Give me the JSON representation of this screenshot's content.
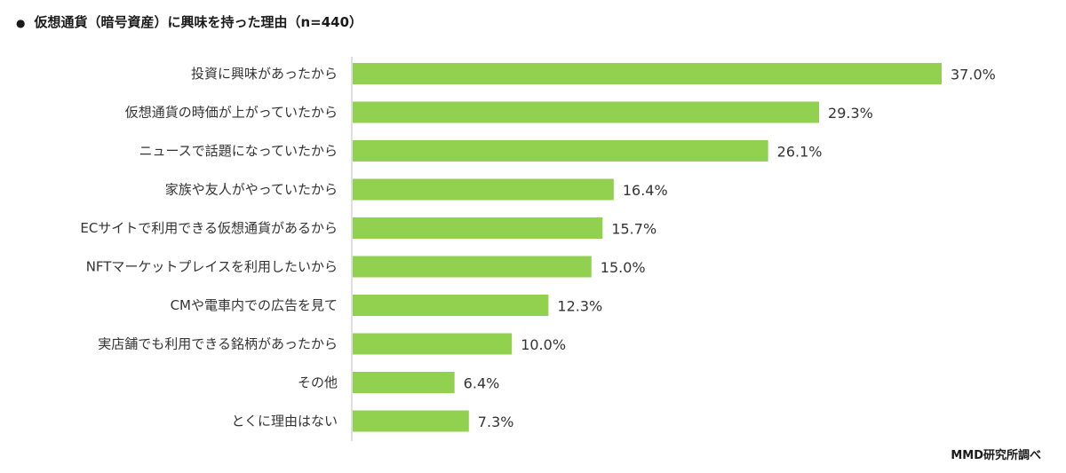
{
  "header": {
    "bullet": "●",
    "title": "仮想通貨（暗号資産）に興味を持った理由（n=440）"
  },
  "footer": {
    "source": "MMD研究所調べ"
  },
  "chart_data": {
    "type": "bar",
    "orientation": "horizontal",
    "categories": [
      "投資に興味があったから",
      "仮想通貨の時価が上がっていたから",
      "ニュースで話題になっていたから",
      "家族や友人がやっていたから",
      "ECサイトで利用できる仮想通貨があるから",
      "NFTマーケットプレイスを利用したいから",
      "CMや電車内での広告を見て",
      "実店舗でも利用できる銘柄があったから",
      "その他",
      "とくに理由はない"
    ],
    "values": [
      37.0,
      29.3,
      26.1,
      16.4,
      15.7,
      15.0,
      12.3,
      10.0,
      6.4,
      7.3
    ],
    "value_labels": [
      "37.0%",
      "29.3%",
      "26.1%",
      "16.4%",
      "15.7%",
      "15.0%",
      "12.3%",
      "10.0%",
      "6.4%",
      "7.3%"
    ],
    "bar_color": "#92d050",
    "xlim": [
      0,
      37.0
    ],
    "grid": false,
    "legend": "none"
  }
}
